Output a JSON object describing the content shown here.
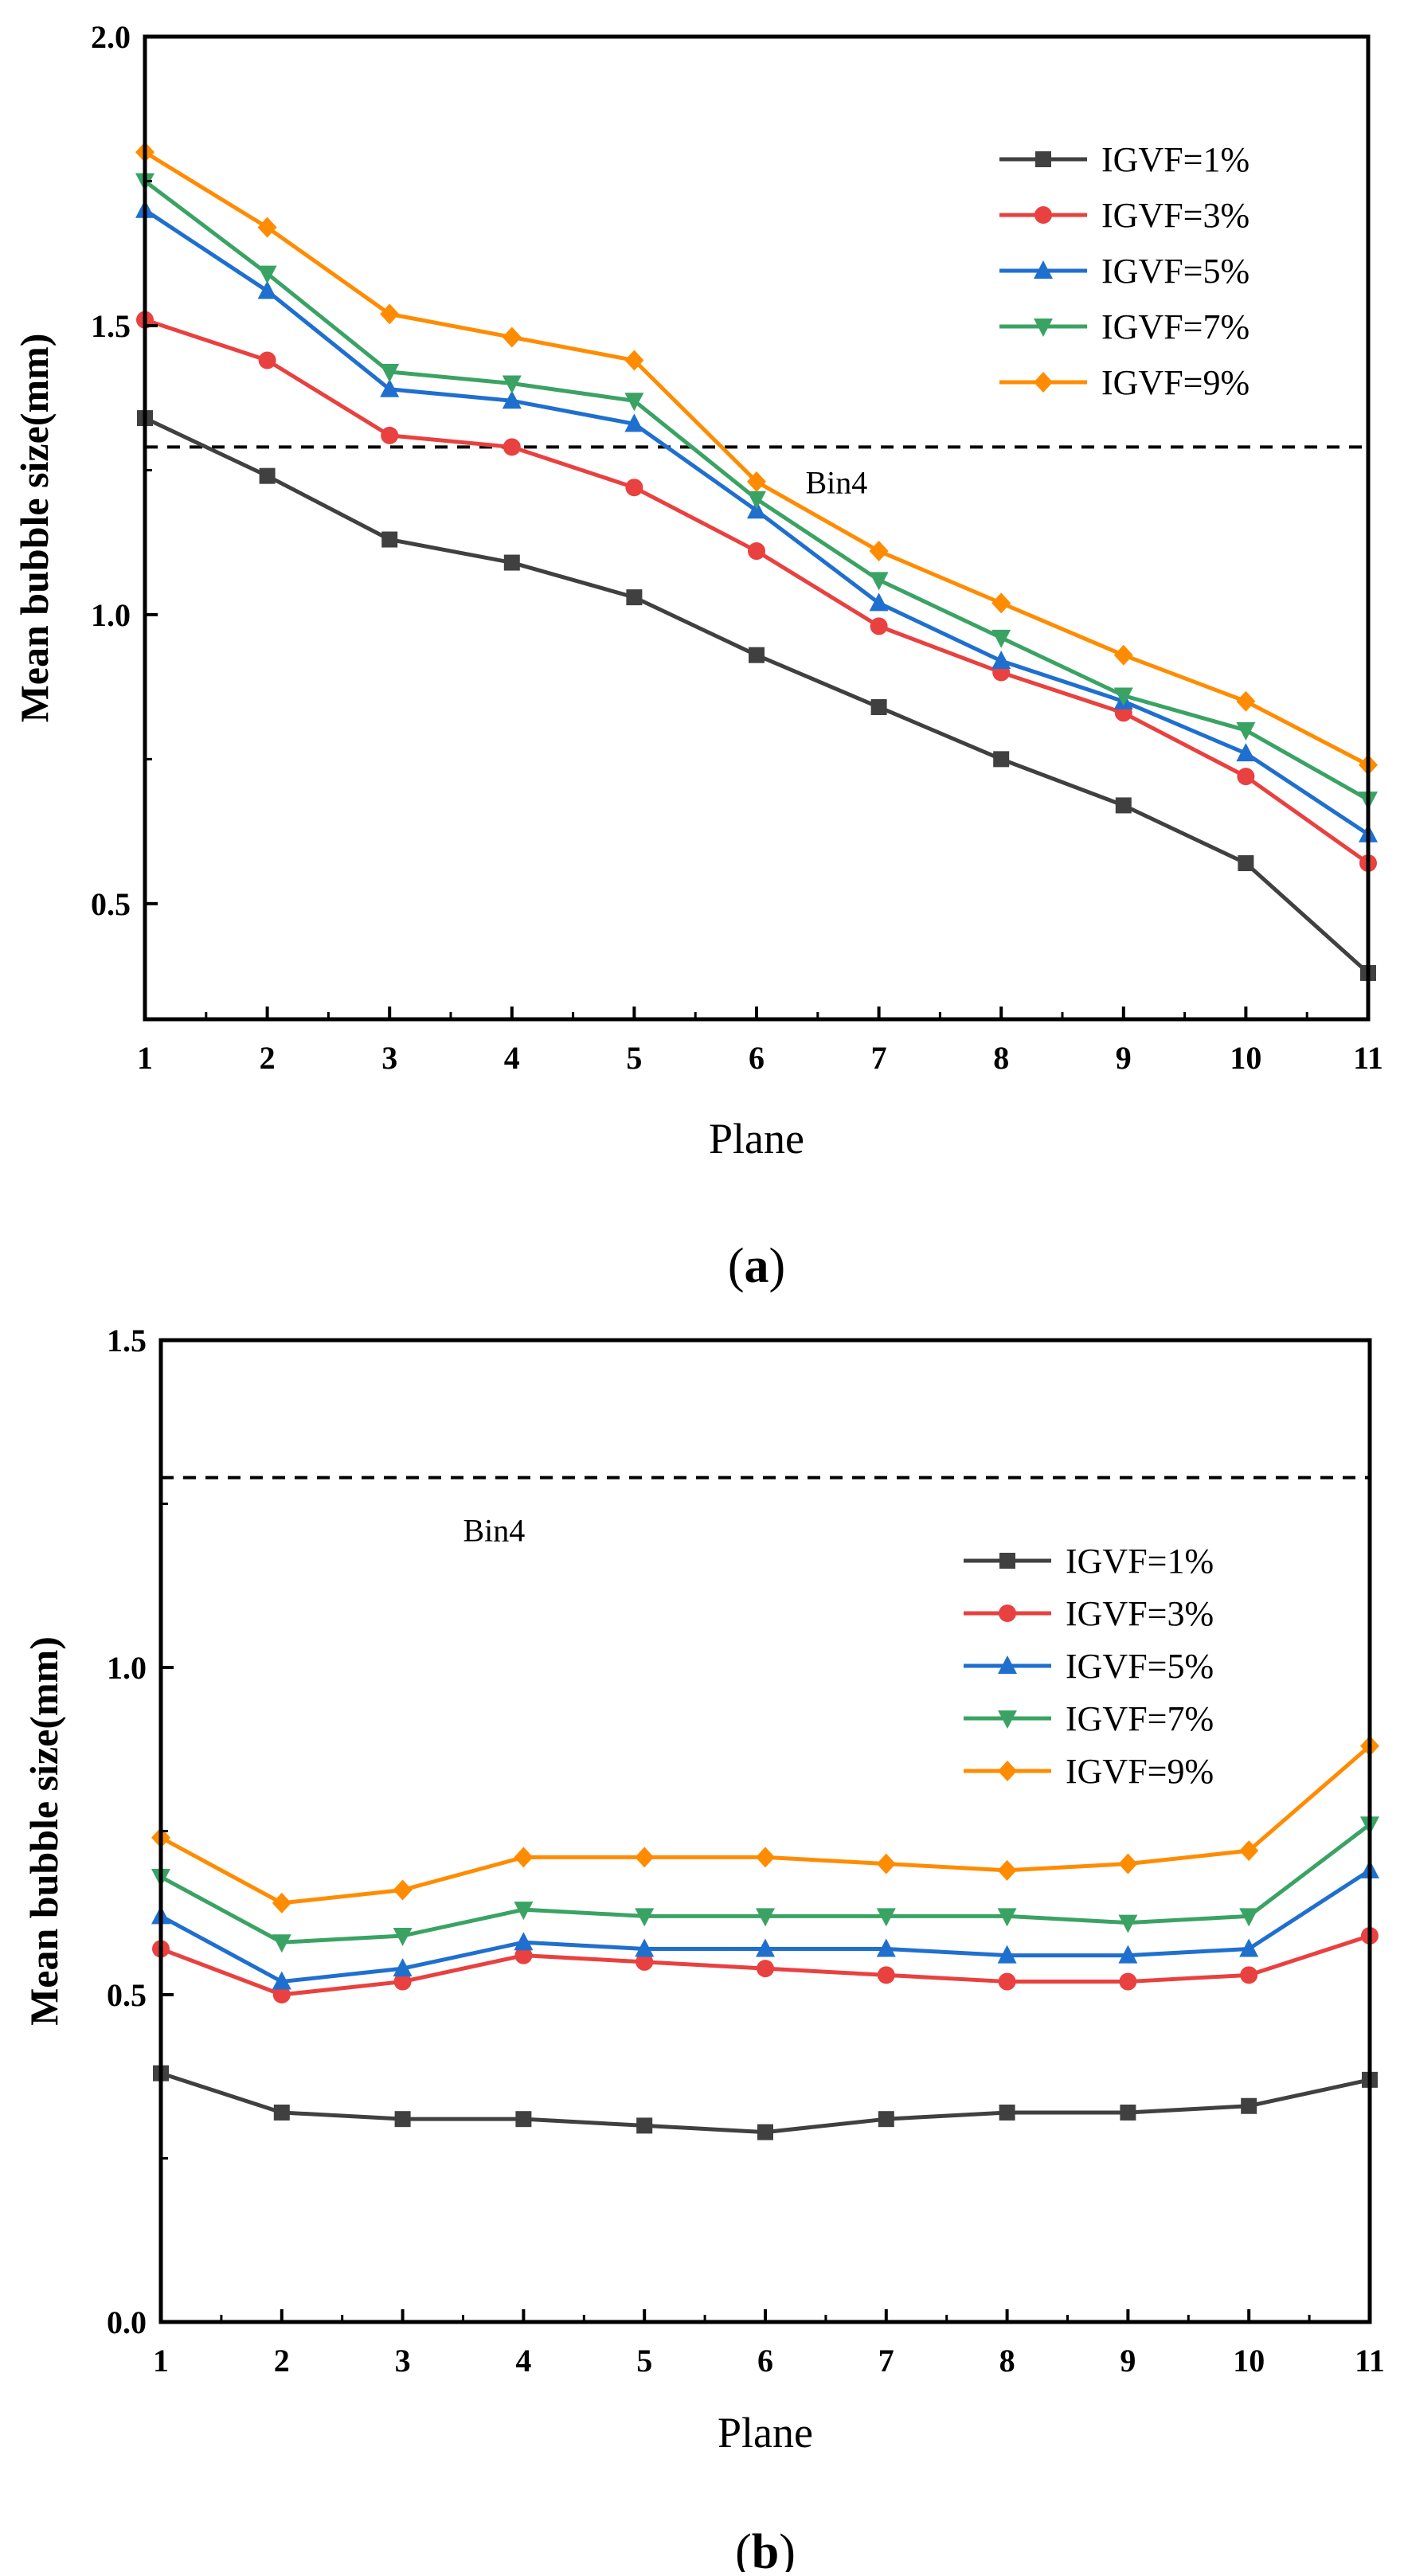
{
  "chart_data": [
    {
      "type": "line",
      "panel_label_open": "(",
      "panel_label_letter": "a",
      "panel_label_close": ")",
      "xlabel": "Plane",
      "ylabel": "Mean bubble size(mm)",
      "xlim": [
        1,
        11
      ],
      "ylim": [
        0.3,
        2.0
      ],
      "x_ticks": [
        1,
        2,
        3,
        4,
        5,
        6,
        7,
        8,
        9,
        10,
        11
      ],
      "x_tick_labels": [
        "1",
        "2",
        "3",
        "4",
        "5",
        "6",
        "7",
        "8",
        "9",
        "10",
        "11"
      ],
      "y_ticks": [
        0.5,
        1.0,
        1.5,
        2.0
      ],
      "y_tick_labels": [
        "0.5",
        "1.0",
        "1.5",
        "2.0"
      ],
      "legend_position": "top-right",
      "x": [
        1,
        2,
        3,
        4,
        5,
        6,
        7,
        8,
        9,
        10,
        11
      ],
      "series": [
        {
          "name": "IGVF=1%",
          "color": "#404040",
          "marker": "square",
          "values": [
            1.34,
            1.24,
            1.13,
            1.09,
            1.03,
            0.93,
            0.84,
            0.75,
            0.67,
            0.57,
            0.38
          ]
        },
        {
          "name": "IGVF=3%",
          "color": "#e8413f",
          "marker": "circle",
          "values": [
            1.51,
            1.44,
            1.31,
            1.29,
            1.22,
            1.11,
            0.98,
            0.9,
            0.83,
            0.72,
            0.57
          ]
        },
        {
          "name": "IGVF=5%",
          "color": "#1f6fcf",
          "marker": "triangle-up",
          "values": [
            1.7,
            1.56,
            1.39,
            1.37,
            1.33,
            1.18,
            1.02,
            0.92,
            0.85,
            0.76,
            0.62
          ]
        },
        {
          "name": "IGVF=7%",
          "color": "#3aa364",
          "marker": "triangle-down",
          "values": [
            1.75,
            1.59,
            1.42,
            1.4,
            1.37,
            1.2,
            1.06,
            0.96,
            0.86,
            0.8,
            0.68
          ]
        },
        {
          "name": "IGVF=9%",
          "color": "#ff8c00",
          "marker": "diamond",
          "values": [
            1.8,
            1.67,
            1.52,
            1.48,
            1.44,
            1.23,
            1.11,
            1.02,
            0.93,
            0.85,
            0.74
          ]
        }
      ],
      "reference_line": {
        "label": "Bin4",
        "value": 1.29,
        "style": "dashed"
      }
    },
    {
      "type": "line",
      "panel_label_open": "(",
      "panel_label_letter": "b",
      "panel_label_close": ")",
      "xlabel": "Plane",
      "ylabel": "Mean bubble size(mm)",
      "xlim": [
        1,
        11
      ],
      "ylim": [
        0.0,
        1.5
      ],
      "x_ticks": [
        1,
        2,
        3,
        4,
        5,
        6,
        7,
        8,
        9,
        10,
        11
      ],
      "x_tick_labels": [
        "1",
        "2",
        "3",
        "4",
        "5",
        "6",
        "7",
        "8",
        "9",
        "10",
        "11"
      ],
      "y_ticks": [
        0.0,
        0.5,
        1.0,
        1.5
      ],
      "y_tick_labels": [
        "0.0",
        "0.5",
        "1.0",
        "1.5"
      ],
      "legend_position": "center-right",
      "x": [
        1,
        2,
        3,
        4,
        5,
        6,
        7,
        8,
        9,
        10,
        11
      ],
      "series": [
        {
          "name": "IGVF=1%",
          "color": "#404040",
          "marker": "square",
          "values": [
            0.38,
            0.32,
            0.31,
            0.31,
            0.3,
            0.29,
            0.31,
            0.32,
            0.32,
            0.33,
            0.37
          ]
        },
        {
          "name": "IGVF=3%",
          "color": "#e8413f",
          "marker": "circle",
          "values": [
            0.57,
            0.5,
            0.52,
            0.56,
            0.55,
            0.54,
            0.53,
            0.52,
            0.52,
            0.53,
            0.59
          ]
        },
        {
          "name": "IGVF=5%",
          "color": "#1f6fcf",
          "marker": "triangle-up",
          "values": [
            0.62,
            0.52,
            0.54,
            0.58,
            0.57,
            0.57,
            0.57,
            0.56,
            0.56,
            0.57,
            0.69
          ]
        },
        {
          "name": "IGVF=7%",
          "color": "#3aa364",
          "marker": "triangle-down",
          "values": [
            0.68,
            0.58,
            0.59,
            0.63,
            0.62,
            0.62,
            0.62,
            0.62,
            0.61,
            0.62,
            0.76
          ]
        },
        {
          "name": "IGVF=9%",
          "color": "#ff8c00",
          "marker": "diamond",
          "values": [
            0.74,
            0.64,
            0.66,
            0.71,
            0.71,
            0.71,
            0.7,
            0.69,
            0.7,
            0.72,
            0.88
          ]
        }
      ],
      "reference_line": {
        "label": "Bin4",
        "value": 1.29,
        "style": "dashed"
      }
    }
  ]
}
